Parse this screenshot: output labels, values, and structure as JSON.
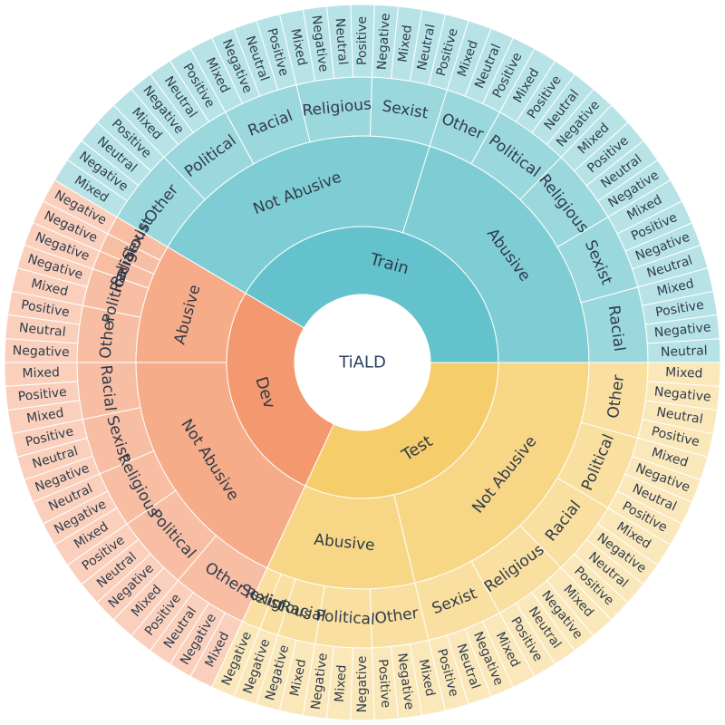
{
  "chart_data": {
    "type": "sunburst",
    "root": "TiALD",
    "colors": {
      "Train": "#63c2cb",
      "Test": "#f5cd6b",
      "Dev": "#f4996f"
    },
    "children": [
      {
        "name": "Train",
        "children": [
          {
            "name": "Abusive",
            "children": [
              {
                "name": "Racial",
                "children": [
                  {
                    "name": "Neutral"
                  },
                  {
                    "name": "Negative"
                  },
                  {
                    "name": "Positive"
                  },
                  {
                    "name": "Mixed"
                  }
                ]
              },
              {
                "name": "Sexist",
                "children": [
                  {
                    "name": "Neutral"
                  },
                  {
                    "name": "Negative"
                  },
                  {
                    "name": "Positive"
                  },
                  {
                    "name": "Mixed"
                  }
                ]
              },
              {
                "name": "Religious",
                "children": [
                  {
                    "name": "Negative"
                  },
                  {
                    "name": "Neutral"
                  },
                  {
                    "name": "Positive"
                  },
                  {
                    "name": "Mixed"
                  }
                ]
              },
              {
                "name": "Political",
                "children": [
                  {
                    "name": "Negative"
                  },
                  {
                    "name": "Neutral"
                  },
                  {
                    "name": "Positive"
                  },
                  {
                    "name": "Mixed"
                  }
                ]
              },
              {
                "name": "Other",
                "children": [
                  {
                    "name": "Positive"
                  },
                  {
                    "name": "Neutral"
                  },
                  {
                    "name": "Mixed"
                  }
                ]
              }
            ]
          },
          {
            "name": "Not Abusive",
            "children": [
              {
                "name": "Sexist",
                "children": [
                  {
                    "name": "Positive"
                  },
                  {
                    "name": "Neutral"
                  },
                  {
                    "name": "Mixed"
                  },
                  {
                    "name": "Negative"
                  }
                ]
              },
              {
                "name": "Religious",
                "children": [
                  {
                    "name": "Positive"
                  },
                  {
                    "name": "Neutral"
                  },
                  {
                    "name": "Negative"
                  },
                  {
                    "name": "Mixed"
                  }
                ]
              },
              {
                "name": "Racial",
                "children": [
                  {
                    "name": "Positive"
                  },
                  {
                    "name": "Neutral"
                  },
                  {
                    "name": "Negative"
                  },
                  {
                    "name": "Mixed"
                  }
                ]
              },
              {
                "name": "Political",
                "children": [
                  {
                    "name": "Positive"
                  },
                  {
                    "name": "Neutral"
                  },
                  {
                    "name": "Negative"
                  },
                  {
                    "name": "Mixed"
                  }
                ]
              },
              {
                "name": "Other",
                "children": [
                  {
                    "name": "Positive"
                  },
                  {
                    "name": "Neutral"
                  },
                  {
                    "name": "Negative"
                  },
                  {
                    "name": "Mixed"
                  }
                ]
              }
            ]
          }
        ]
      },
      {
        "name": "Dev",
        "children": [
          {
            "name": "Abusive",
            "children": [
              {
                "name": "Sexist",
                "children": [
                  {
                    "name": "Negative"
                  }
                ]
              },
              {
                "name": "Religious",
                "children": [
                  {
                    "name": "Negative"
                  }
                ]
              },
              {
                "name": "Racial",
                "children": [
                  {
                    "name": "Negative"
                  }
                ]
              },
              {
                "name": "Political",
                "children": [
                  {
                    "name": "Negative"
                  },
                  {
                    "name": "Mixed"
                  }
                ]
              },
              {
                "name": "Other",
                "children": [
                  {
                    "name": "Positive"
                  },
                  {
                    "name": "Neutral"
                  },
                  {
                    "name": "Negative"
                  }
                ]
              }
            ]
          },
          {
            "name": "Not Abusive",
            "children": [
              {
                "name": "Racial",
                "children": [
                  {
                    "name": "Mixed"
                  },
                  {
                    "name": "Positive"
                  },
                  {
                    "name": "Mixed"
                  }
                ]
              },
              {
                "name": "Sexist",
                "children": [
                  {
                    "name": "Positive"
                  },
                  {
                    "name": "Neutral"
                  },
                  {
                    "name": "Negative"
                  }
                ]
              },
              {
                "name": "Religious",
                "children": [
                  {
                    "name": "Neutral"
                  },
                  {
                    "name": "Negative"
                  },
                  {
                    "name": "Mixed"
                  }
                ]
              },
              {
                "name": "Political",
                "children": [
                  {
                    "name": "Positive"
                  },
                  {
                    "name": "Neutral"
                  },
                  {
                    "name": "Negative"
                  },
                  {
                    "name": "Mixed"
                  }
                ]
              },
              {
                "name": "Other",
                "children": [
                  {
                    "name": "Positive"
                  },
                  {
                    "name": "Neutral"
                  },
                  {
                    "name": "Negative"
                  },
                  {
                    "name": "Mixed"
                  }
                ]
              }
            ]
          }
        ]
      },
      {
        "name": "Test",
        "children": [
          {
            "name": "Abusive",
            "children": [
              {
                "name": "Sexist",
                "children": [
                  {
                    "name": "Negative"
                  }
                ]
              },
              {
                "name": "Religious",
                "children": [
                  {
                    "name": "Negative"
                  }
                ]
              },
              {
                "name": "Racial",
                "children": [
                  {
                    "name": "Negative"
                  },
                  {
                    "name": "Mixed"
                  }
                ]
              },
              {
                "name": "Political",
                "children": [
                  {
                    "name": "Negative"
                  },
                  {
                    "name": "Mixed"
                  },
                  {
                    "name": "Negative"
                  }
                ]
              },
              {
                "name": "Other",
                "children": [
                  {
                    "name": "Positive"
                  },
                  {
                    "name": "Negative"
                  },
                  {
                    "name": "Mixed"
                  }
                ]
              }
            ]
          },
          {
            "name": "Not Abusive",
            "children": [
              {
                "name": "Sexist",
                "children": [
                  {
                    "name": "Positive"
                  },
                  {
                    "name": "Neutral"
                  },
                  {
                    "name": "Negative"
                  },
                  {
                    "name": "Mixed"
                  }
                ]
              },
              {
                "name": "Religious",
                "children": [
                  {
                    "name": "Positive"
                  },
                  {
                    "name": "Neutral"
                  },
                  {
                    "name": "Negative"
                  },
                  {
                    "name": "Mixed"
                  }
                ]
              },
              {
                "name": "Racial",
                "children": [
                  {
                    "name": "Positive"
                  },
                  {
                    "name": "Neutral"
                  },
                  {
                    "name": "Negative"
                  },
                  {
                    "name": "Mixed"
                  }
                ]
              },
              {
                "name": "Political",
                "children": [
                  {
                    "name": "Positive"
                  },
                  {
                    "name": "Neutral"
                  },
                  {
                    "name": "Negative"
                  },
                  {
                    "name": "Mixed"
                  }
                ]
              },
              {
                "name": "Other",
                "children": [
                  {
                    "name": "Positive"
                  },
                  {
                    "name": "Neutral"
                  },
                  {
                    "name": "Negative"
                  },
                  {
                    "name": "Mixed"
                  }
                ]
              }
            ]
          }
        ]
      }
    ]
  }
}
